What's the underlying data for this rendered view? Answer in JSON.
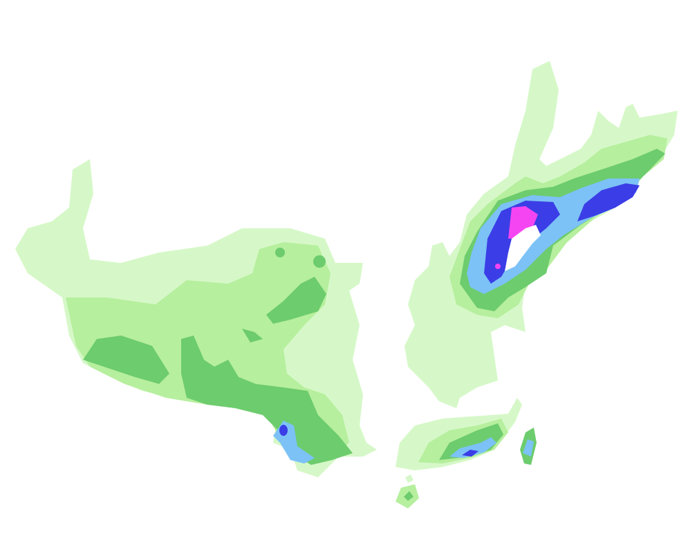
{
  "map": {
    "legend_shown": false,
    "colors": {
      "background": "#ffffff",
      "level1": "#d6f8c8",
      "level2": "#b6ef9e",
      "level3": "#6dcc6d",
      "level4": "#7cc2f6",
      "level5": "#3b3de6",
      "level6": "#f545f2"
    }
  }
}
